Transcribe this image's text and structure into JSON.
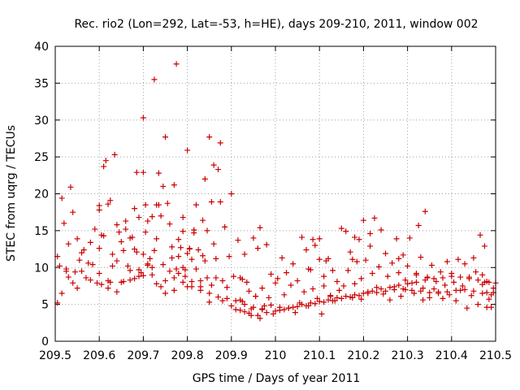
{
  "chart_data": {
    "type": "scatter",
    "title": "Rec. rio2 (Lon=292, Lat=-53, h=HE), days 209-210, 2011, window 002",
    "xlabel": "GPS time / Days of year 2011",
    "ylabel": "STEC from uqrg / TECUs",
    "xlim": [
      209.5,
      210.5
    ],
    "ylim": [
      0,
      40
    ],
    "xticks": [
      209.5,
      209.6,
      209.7,
      209.8,
      209.9,
      210,
      210.1,
      210.2,
      210.3,
      210.4,
      210.5
    ],
    "xtick_labels": [
      "209.5",
      "209.6",
      "209.7",
      "209.8",
      "209.9",
      "210",
      "210.1",
      "210.2",
      "210.3",
      "210.4",
      "210.5"
    ],
    "yticks": [
      0,
      5,
      10,
      15,
      20,
      25,
      30,
      35,
      40
    ],
    "ytick_labels": [
      "0",
      "5",
      "10",
      "15",
      "20",
      "25",
      "30",
      "35",
      "40"
    ],
    "grid": true,
    "marker": "+",
    "color": "#cc0000",
    "series": [
      {
        "name": "STEC",
        "x": [
          209.505,
          209.505,
          209.51,
          209.515,
          209.52,
          209.525,
          209.53,
          209.53,
          209.535,
          209.54,
          209.54,
          209.545,
          209.55,
          209.55,
          209.555,
          209.56,
          209.565,
          209.57,
          209.575,
          209.58,
          209.58,
          209.585,
          209.59,
          209.595,
          209.6,
          209.6,
          209.605,
          209.61,
          209.61,
          209.615,
          209.62,
          209.62,
          209.625,
          209.63,
          209.635,
          209.64,
          209.64,
          209.645,
          209.65,
          209.655,
          209.66,
          209.665,
          209.67,
          209.675,
          209.68,
          209.685,
          209.69,
          209.695,
          209.7,
          209.705,
          209.71,
          209.715,
          209.72,
          209.725,
          209.73,
          209.735,
          209.74,
          209.745,
          209.75,
          209.755,
          209.76,
          209.765,
          209.77,
          209.775,
          209.78,
          209.785,
          209.79,
          209.795,
          209.8,
          209.805,
          209.81,
          209.815,
          209.82,
          209.825,
          209.83,
          209.835,
          209.84,
          209.845,
          209.85,
          209.855,
          209.86,
          209.865,
          209.87,
          209.875,
          209.88,
          209.885,
          209.89,
          209.895,
          209.9,
          209.905,
          209.91,
          209.915,
          209.92,
          209.925,
          209.93,
          209.935,
          209.94,
          209.945,
          209.95,
          209.955,
          209.96,
          209.965,
          209.97,
          209.975,
          209.98,
          209.985,
          209.99,
          209.995,
          210,
          210.005,
          210.01,
          210.015,
          210.02,
          210.025,
          210.03,
          210.035,
          210.04,
          210.045,
          210.05,
          210.055,
          210.06,
          210.065,
          210.07,
          210.075,
          210.08,
          210.085,
          210.09,
          210.095,
          210.1,
          210.105,
          210.11,
          210.115,
          210.12,
          210.125,
          210.13,
          210.135,
          210.14,
          210.145,
          210.15,
          210.155,
          210.16,
          210.165,
          210.17,
          210.175,
          210.18,
          210.185,
          210.19,
          210.195,
          210.2,
          210.205,
          210.21,
          210.215,
          210.22,
          210.225,
          210.23,
          210.235,
          210.24,
          210.245,
          210.25,
          210.255,
          210.26,
          210.265,
          210.27,
          210.275,
          210.28,
          210.285,
          210.29,
          210.295,
          210.3,
          210.305,
          210.31,
          210.315,
          210.32,
          210.325,
          210.33,
          210.335,
          210.34,
          210.345,
          210.35,
          210.355,
          210.36,
          210.365,
          210.37,
          210.375,
          210.38,
          210.385,
          210.39,
          210.395,
          210.4,
          210.405,
          210.41,
          210.415,
          210.42,
          210.425,
          210.43,
          210.435,
          210.44,
          210.445,
          210.45,
          210.455,
          210.46,
          210.465,
          210.47,
          210.475,
          210.48,
          210.485,
          210.49,
          210.495,
          209.515,
          209.525,
          209.56,
          209.6,
          209.605,
          209.625,
          209.66,
          209.685,
          209.69,
          209.7,
          209.705,
          209.72,
          209.735,
          209.745,
          209.78,
          209.79,
          209.815,
          209.835,
          209.845,
          209.855,
          209.86,
          209.875,
          209.7,
          209.71,
          209.73,
          209.75,
          209.765,
          209.77,
          209.795,
          209.8,
          209.805,
          209.82,
          209.84,
          209.85,
          209.865,
          209.62,
          209.64,
          209.655,
          209.67,
          209.68,
          209.69,
          209.71,
          209.72,
          209.725,
          209.74,
          209.76,
          209.775,
          209.78,
          209.79,
          209.8,
          209.81,
          209.83,
          209.6,
          209.63,
          209.65,
          209.67,
          209.68,
          209.7,
          209.73,
          209.75,
          209.77,
          209.79,
          209.81,
          209.83,
          209.85,
          209.87,
          209.89,
          209.91,
          209.93,
          209.95,
          209.97,
          209.99,
          210.01,
          210.03,
          210.05,
          210.07,
          210.09,
          210.11,
          210.13,
          210.15,
          210.17,
          210.19,
          210.21,
          210.23,
          210.25,
          210.27,
          210.29,
          210.31,
          210.33,
          210.35,
          210.37,
          210.39,
          210.41,
          210.43,
          210.45,
          210.47,
          210.49,
          209.88,
          209.9,
          209.92,
          209.94,
          209.96,
          209.98,
          210.0,
          210.02,
          210.04,
          210.06,
          210.08,
          210.1,
          210.12,
          210.14,
          210.16,
          210.18,
          210.2,
          210.22,
          210.24,
          210.26,
          210.28,
          210.3,
          210.32,
          210.34,
          210.36,
          210.38,
          210.4,
          210.42,
          210.44,
          210.46,
          210.48,
          210.5,
          210.47,
          210.475,
          210.48,
          210.485,
          210.495,
          210.32,
          210.335,
          210.345,
          210.28,
          210.295,
          210.215,
          210.195,
          210.175,
          210.18,
          210.125,
          210.11,
          210.1,
          210.085,
          210.075,
          209.97,
          209.965,
          209.955,
          209.945,
          209.92,
          209.925,
          209.93
        ],
        "y": [
          5.2,
          11.5,
          10.2,
          19.4,
          16.0,
          9.8,
          13.2,
          8.7,
          20.9,
          17.5,
          7.9,
          9.4,
          13.9,
          7.2,
          11.0,
          9.5,
          12.4,
          8.6,
          10.6,
          13.4,
          8.3,
          10.4,
          15.2,
          7.9,
          17.8,
          9.2,
          7.7,
          14.3,
          23.7,
          24.5,
          18.6,
          8.2,
          19.1,
          11.8,
          25.3,
          15.8,
          10.9,
          14.8,
          13.5,
          8.1,
          16.3,
          10.2,
          9.6,
          14.1,
          18.0,
          22.9,
          16.8,
          9.3,
          30.3,
          18.5,
          16.3,
          11.2,
          9.0,
          35.5,
          18.5,
          22.8,
          17.0,
          10.4,
          27.7,
          18.7,
          15.9,
          11.3,
          21.2,
          37.6,
          13.8,
          12.7,
          14.9,
          9.7,
          25.9,
          12.5,
          11.1,
          15.1,
          18.5,
          12.4,
          7.4,
          16.4,
          22.0,
          8.6,
          27.7,
          18.9,
          23.9,
          11.2,
          23.3,
          26.9,
          8.2,
          15.5,
          7.3,
          11.5,
          20.0,
          8.8,
          4.3,
          13.7,
          8.6,
          5.4,
          11.8,
          8.0,
          6.8,
          4.4,
          14.0,
          6.1,
          12.6,
          15.4,
          7.2,
          4.8,
          13.1,
          5.9,
          9.1,
          3.7,
          7.9,
          8.5,
          4.6,
          11.3,
          6.3,
          9.3,
          4.5,
          7.6,
          10.5,
          3.9,
          8.2,
          5.2,
          14.1,
          6.7,
          12.4,
          4.8,
          9.7,
          7.1,
          13.0,
          5.8,
          13.9,
          3.7,
          8.8,
          10.9,
          11.2,
          6.2,
          9.6,
          5.5,
          8.1,
          6.9,
          15.3,
          7.5,
          14.9,
          9.6,
          12.1,
          5.9,
          7.8,
          10.8,
          13.8,
          8.5,
          16.4,
          11.0,
          6.7,
          12.9,
          9.2,
          16.7,
          7.3,
          10.1,
          15.1,
          6.4,
          11.9,
          8.8,
          5.6,
          10.6,
          7.4,
          13.9,
          9.3,
          6.1,
          11.7,
          8.3,
          10.2,
          14.0,
          7.9,
          6.5,
          9.0,
          15.7,
          11.4,
          7.2,
          17.6,
          8.6,
          5.9,
          10.3,
          7.1,
          8.1,
          6.7,
          9.4,
          5.8,
          7.6,
          10.8,
          6.3,
          9.2,
          8.0,
          5.5,
          11.1,
          6.9,
          7.5,
          10.5,
          4.5,
          8.7,
          6.2,
          11.3,
          9.4,
          5.0,
          14.4,
          7.7,
          12.9,
          6.6,
          8.0,
          4.6,
          7.2,
          6.5,
          9.5,
          12.0,
          18.4,
          14.4,
          8.0,
          15.2,
          12.1,
          8.8,
          22.9,
          14.8,
          16.9,
          18.5,
          21.0,
          9.2,
          16.8,
          14.7,
          11.6,
          15.0,
          7.6,
          13.2,
          18.9,
          11.8,
          10.5,
          13.9,
          6.5,
          12.8,
          6.9,
          8.8,
          7.4,
          12.6,
          9.8,
          10.9,
          5.3,
          8.6,
          7.2,
          6.7,
          12.3,
          14.0,
          12.5,
          9.7,
          10.3,
          10.0,
          12.3,
          7.4,
          9.5,
          9.8,
          11.5,
          10.0,
          11.9,
          8.1,
          8.2,
          12.6,
          10.2,
          8.0,
          8.3,
          8.5,
          8.9,
          7.8,
          8.2,
          8.6,
          8.0,
          7.4,
          6.9,
          6.5,
          6.0,
          5.8,
          5.5,
          5.0,
          4.6,
          4.3,
          4.9,
          4.2,
          4.5,
          4.7,
          4.8,
          5.1,
          5.3,
          5.5,
          5.8,
          6.0,
          6.2,
          6.5,
          6.6,
          6.8,
          7.0,
          7.1,
          6.9,
          6.8,
          6.6,
          6.5,
          6.7,
          6.9,
          7.0,
          6.8,
          6.5,
          6.3,
          5.5,
          4.8,
          4.2,
          3.8,
          3.5,
          3.9,
          4.1,
          4.3,
          4.6,
          5.0,
          5.2,
          5.4,
          5.6,
          5.9,
          6.1,
          6.3,
          6.5,
          6.8,
          7.1,
          7.3,
          7.6,
          7.8,
          8.0,
          8.3,
          8.5,
          8.6,
          8.8,
          8.7,
          8.5,
          8.3,
          8.1,
          7.9,
          9.0,
          8.0,
          4.6,
          5.7,
          6.6,
          9.2,
          5.6,
          8.7,
          11.2,
          7.0,
          14.6,
          5.7,
          11.1,
          14.1,
          6.1,
          7.5,
          11.1,
          13.8,
          9.8,
          4.4,
          3.1,
          6.1,
          3.5,
          5.6,
          8.4,
          4.0
        ]
      }
    ]
  }
}
